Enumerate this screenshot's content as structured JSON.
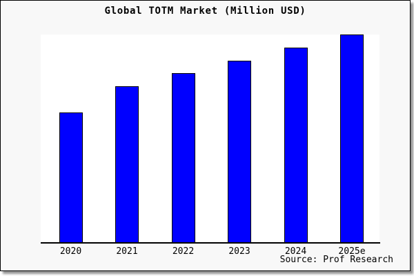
{
  "chart_data": {
    "type": "bar",
    "title": "Global TOTM Market (Million USD)",
    "categories": [
      "2020",
      "2021",
      "2022",
      "2023",
      "2024",
      "2025e"
    ],
    "values": [
      62.5,
      75,
      81.25,
      87.5,
      93.75,
      100
    ],
    "values_note": "no y-axis or data labels shown; values estimated from bar heights as percent of tallest bar (height ratio 10:12:13:14:15:16)",
    "xlabel": "",
    "ylabel": "",
    "ylim": [
      0,
      100
    ],
    "y_axis_shown": false,
    "grid": false,
    "legend": false,
    "bar_color": "#0000ff",
    "bar_border_color": "#000000"
  },
  "source": {
    "text": "Source: Prof Research"
  },
  "colors": {
    "figure_background": "#f8f8f8",
    "plot_background": "#ffffff",
    "axis": "#000000",
    "text": "#000000",
    "figure_border": "#000000"
  }
}
